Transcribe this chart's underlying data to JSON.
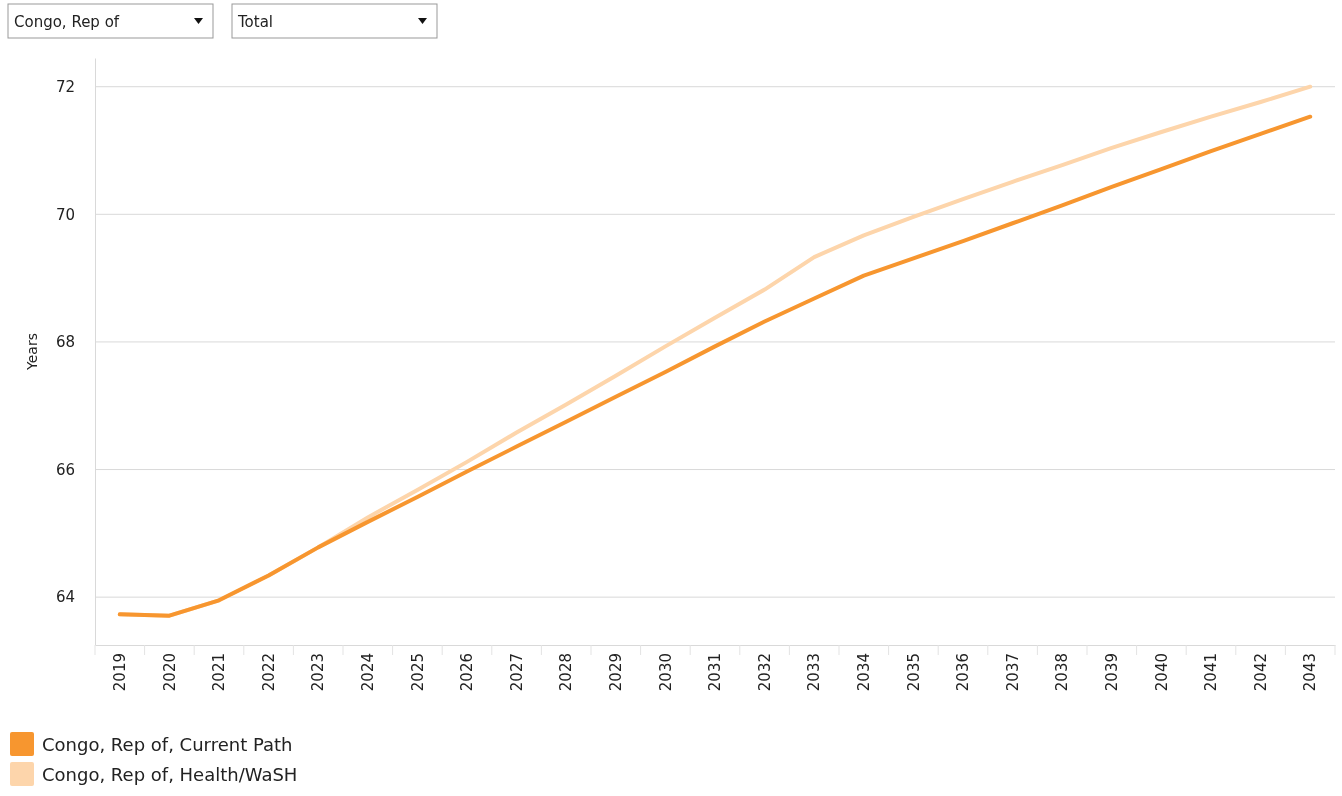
{
  "chart_data": {
    "type": "line",
    "ylabel": "Years",
    "annotations": [
      "Congo, Rep of",
      "Total"
    ],
    "categories": [
      "2019",
      "2020",
      "2021",
      "2022",
      "2023",
      "2024",
      "2025",
      "2026",
      "2027",
      "2028",
      "2029",
      "2030",
      "2031",
      "2032",
      "2033",
      "2034",
      "2035",
      "2036",
      "2037",
      "2038",
      "2039",
      "2040",
      "2041",
      "2042",
      "2043"
    ],
    "series": [
      {
        "name": "Congo, Rep of, Current Path",
        "color": "#f7962f",
        "values": [
          63.73,
          63.71,
          63.95,
          64.34,
          64.78,
          65.18,
          65.57,
          65.97,
          66.36,
          66.75,
          67.14,
          67.53,
          67.93,
          68.32,
          68.68,
          69.04,
          69.31,
          69.58,
          69.86,
          70.14,
          70.43,
          70.71,
          70.99,
          71.26,
          71.53
        ]
      },
      {
        "name": "Congo, Rep of, Health/WaSH",
        "color": "#fdd5ab",
        "values": [
          63.73,
          63.71,
          63.95,
          64.34,
          64.78,
          65.25,
          65.68,
          66.12,
          66.58,
          67.02,
          67.47,
          67.93,
          68.38,
          68.82,
          69.33,
          69.67,
          69.96,
          70.24,
          70.51,
          70.77,
          71.04,
          71.29,
          71.53,
          71.76,
          72.0
        ]
      }
    ],
    "ylim": [
      63.25,
      72.45
    ],
    "yticks": [
      64,
      66,
      68,
      70,
      72
    ],
    "grid": "y",
    "legend": "bottom left",
    "marker": "none",
    "line_style": "solid"
  }
}
